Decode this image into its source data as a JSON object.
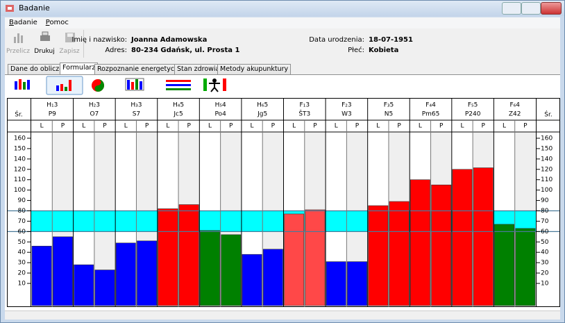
{
  "window": {
    "title": "Badanie"
  },
  "menu": [
    "Badanie",
    "Pomoc"
  ],
  "toolbar": [
    "Przelicz",
    "Drukuj",
    "Zapisz"
  ],
  "patient": {
    "name_label": "Imię i nazwisko:",
    "name": "Joanna Adamowska",
    "address_label": "Adres:",
    "address": "80-234 Gdańsk, ul. Prosta 1",
    "birth_label": "Data urodzenia:",
    "birth": "18-07-1951",
    "sex_label": "Płeć:",
    "sex": "Kobieta"
  },
  "tabs": [
    "Dane do obliczeń",
    "Formularz",
    "Rozpoznanie energetyczne",
    "Stan zdrowia",
    "Metody akupunktury"
  ],
  "active_tab": 1,
  "chart_data": {
    "type": "bar",
    "y_label": "Śr.",
    "groups": [
      "H₁3",
      "H₂3",
      "H₃3",
      "H₄5",
      "H₅4",
      "H₆5",
      "F₁3",
      "F₂3",
      "F₃5",
      "F₄4",
      "F₅5",
      "F₆4"
    ],
    "categories": [
      "P9",
      "O7",
      "S7",
      "Jc5",
      "Po4",
      "Jg5",
      "ŠT3",
      "W3",
      "N5",
      "Pm65",
      "P240",
      "Z42"
    ],
    "colors": [
      "#0000ff",
      "#0000ff",
      "#0000ff",
      "#ff0000",
      "#008000",
      "#0000ff",
      "#ff4848",
      "#0000ff",
      "#ff0000",
      "#ff0000",
      "#ff0000",
      "#008000"
    ],
    "series": [
      {
        "name": "L",
        "values": [
          46,
          28,
          49,
          82,
          61,
          38,
          77,
          31,
          85,
          110,
          120,
          67
        ]
      },
      {
        "name": "P",
        "values": [
          55,
          23,
          51,
          86,
          57,
          43,
          81,
          31,
          89,
          105,
          123,
          63
        ]
      }
    ],
    "normal_range": [
      60,
      80
    ],
    "band_color": "#00ffff",
    "ylim": [
      0,
      170
    ],
    "yticks": [
      10,
      20,
      30,
      40,
      50,
      60,
      70,
      80,
      90,
      100,
      110,
      120,
      140,
      150,
      160
    ]
  }
}
